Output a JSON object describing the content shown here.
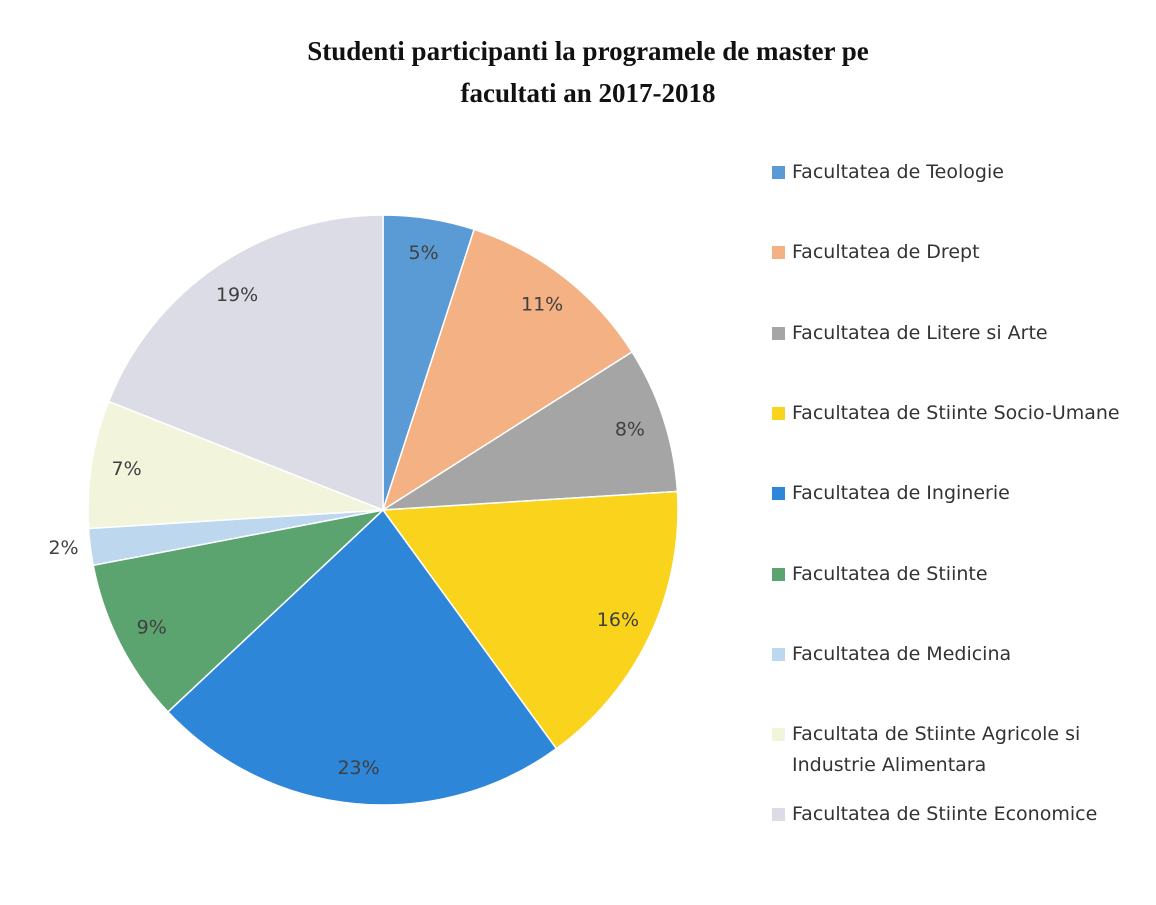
{
  "chart_data": {
    "type": "pie",
    "title": "Studenti participanti la programele de master pe facultati an 2017-2018",
    "categories": [
      "Facultatea de Teologie",
      "Facultatea de Drept",
      "Facultatea de Litere si Arte",
      "Facultatea de Stiinte Socio-Umane",
      "Facultatea de Inginerie",
      "Facultatea de Stiinte",
      "Facultatea de Medicina",
      "Facultata de Stiinte Agricole si Industrie Alimentara",
      "Facultatea de Stiinte Economice"
    ],
    "values": [
      5,
      11,
      8,
      16,
      23,
      9,
      2,
      7,
      19
    ],
    "value_labels": [
      "5%",
      "11%",
      "8%",
      "16%",
      "23%",
      "9%",
      "2%",
      "7%",
      "19%"
    ],
    "colors": [
      "#5b9bd5",
      "#f4b183",
      "#a5a5a5",
      "#f9d31c",
      "#2e86d8",
      "#5ba46f",
      "#bdd7ee",
      "#f2f4dc",
      "#dcdce6"
    ],
    "legend": "right"
  }
}
